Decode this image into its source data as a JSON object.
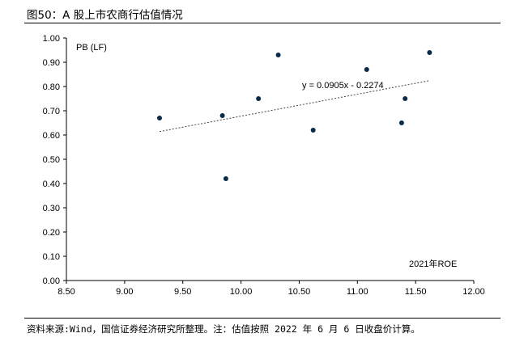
{
  "figure": {
    "title": "图50：A 股上市农商行估值情况",
    "source_note": "资料来源:Wind，国信证券经济研究所整理。注：估值按照 2022 年 6 月 6 日收盘价计算。"
  },
  "chart_data": {
    "type": "scatter",
    "title": "",
    "xlabel": "2021年ROE",
    "ylabel": "PB (LF)",
    "xlim": [
      8.5,
      12.0
    ],
    "ylim": [
      0.0,
      1.0
    ],
    "x_ticks": [
      "8.50",
      "9.00",
      "9.50",
      "10.00",
      "10.50",
      "11.00",
      "11.50",
      "12.00"
    ],
    "y_ticks": [
      "0.00",
      "0.10",
      "0.20",
      "0.30",
      "0.40",
      "0.50",
      "0.60",
      "0.70",
      "0.80",
      "0.90",
      "1.00"
    ],
    "grid": false,
    "points": [
      {
        "x": 9.3,
        "y": 0.67
      },
      {
        "x": 9.84,
        "y": 0.68
      },
      {
        "x": 9.87,
        "y": 0.42
      },
      {
        "x": 10.15,
        "y": 0.75
      },
      {
        "x": 10.32,
        "y": 0.93
      },
      {
        "x": 10.62,
        "y": 0.62
      },
      {
        "x": 11.08,
        "y": 0.87
      },
      {
        "x": 11.38,
        "y": 0.65
      },
      {
        "x": 11.41,
        "y": 0.75
      },
      {
        "x": 11.62,
        "y": 0.94
      }
    ],
    "trendline": {
      "type": "linear",
      "slope": 0.0905,
      "intercept": -0.2274,
      "label": "y = 0.0905x - 0.2274"
    },
    "colors": {
      "marker": "#0b2a4a",
      "trendline": "#444444",
      "axis": "#000000"
    }
  }
}
